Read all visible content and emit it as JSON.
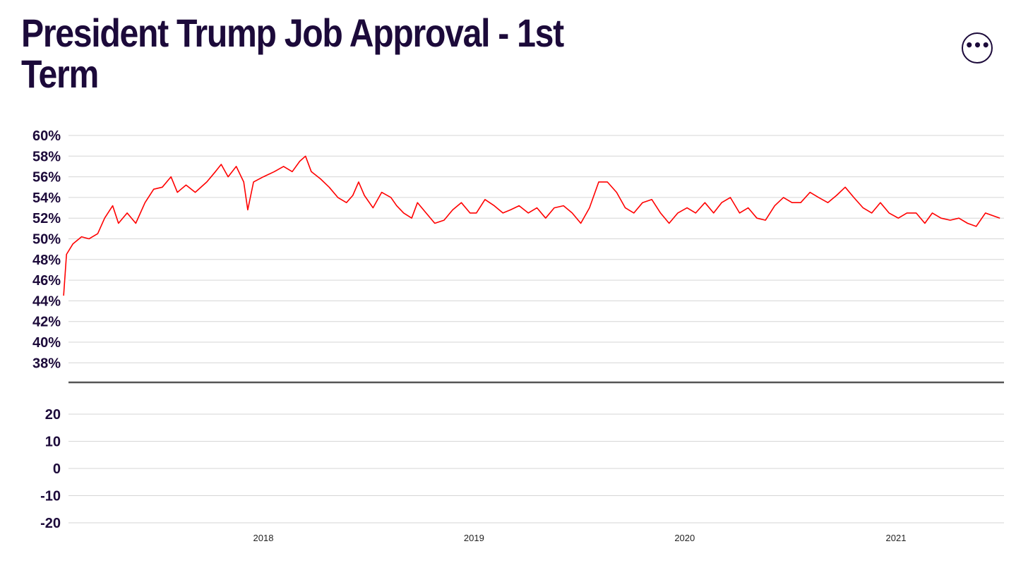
{
  "page": {
    "title": "President Trump Job Approval - 1st Term",
    "more_icon": "ellipsis-icon",
    "more_label": "•••"
  },
  "chart_data": [
    {
      "type": "line",
      "panel": "top",
      "title": "",
      "xlabel": "",
      "ylabel": "",
      "ylim": [
        36,
        60
      ],
      "yticks": [
        "60%",
        "58%",
        "56%",
        "54%",
        "52%",
        "50%",
        "48%",
        "46%",
        "44%",
        "42%",
        "40%",
        "38%"
      ],
      "ytick_values": [
        60,
        58,
        56,
        54,
        52,
        50,
        48,
        46,
        44,
        42,
        40,
        38
      ],
      "xlim": [
        "2017-01-20",
        "2021-06-30"
      ],
      "xticks": [
        "2018",
        "2019",
        "2020",
        "2021"
      ],
      "xtick_dates": [
        "2018-01-01",
        "2019-01-01",
        "2020-01-01",
        "2021-01-01"
      ],
      "grid": true,
      "series": [
        {
          "color": "#ff0000",
          "points": [
            [
              "2017-01-20",
              44.5
            ],
            [
              "2017-01-25",
              48.5
            ],
            [
              "2017-02-05",
              49.5
            ],
            [
              "2017-02-20",
              50.2
            ],
            [
              "2017-03-05",
              50.0
            ],
            [
              "2017-03-20",
              50.5
            ],
            [
              "2017-04-01",
              52.0
            ],
            [
              "2017-04-15",
              53.2
            ],
            [
              "2017-04-25",
              51.5
            ],
            [
              "2017-05-10",
              52.5
            ],
            [
              "2017-05-25",
              51.5
            ],
            [
              "2017-06-10",
              53.5
            ],
            [
              "2017-06-25",
              54.8
            ],
            [
              "2017-07-10",
              55.0
            ],
            [
              "2017-07-25",
              56.0
            ],
            [
              "2017-08-05",
              54.5
            ],
            [
              "2017-08-20",
              55.2
            ],
            [
              "2017-09-05",
              54.5
            ],
            [
              "2017-09-25",
              55.5
            ],
            [
              "2017-10-10",
              56.5
            ],
            [
              "2017-10-20",
              57.2
            ],
            [
              "2017-11-01",
              56.0
            ],
            [
              "2017-11-15",
              57.0
            ],
            [
              "2017-11-28",
              55.5
            ],
            [
              "2017-12-05",
              52.8
            ],
            [
              "2017-12-15",
              55.5
            ],
            [
              "2018-01-01",
              56.0
            ],
            [
              "2018-01-20",
              56.5
            ],
            [
              "2018-02-05",
              57.0
            ],
            [
              "2018-02-20",
              56.5
            ],
            [
              "2018-03-05",
              57.5
            ],
            [
              "2018-03-15",
              58.0
            ],
            [
              "2018-03-25",
              56.5
            ],
            [
              "2018-04-10",
              55.8
            ],
            [
              "2018-04-25",
              55.0
            ],
            [
              "2018-05-10",
              54.0
            ],
            [
              "2018-05-25",
              53.5
            ],
            [
              "2018-06-05",
              54.2
            ],
            [
              "2018-06-15",
              55.5
            ],
            [
              "2018-06-25",
              54.2
            ],
            [
              "2018-07-10",
              53.0
            ],
            [
              "2018-07-25",
              54.5
            ],
            [
              "2018-08-10",
              54.0
            ],
            [
              "2018-08-20",
              53.2
            ],
            [
              "2018-09-01",
              52.5
            ],
            [
              "2018-09-15",
              52.0
            ],
            [
              "2018-09-25",
              53.5
            ],
            [
              "2018-10-10",
              52.5
            ],
            [
              "2018-10-25",
              51.5
            ],
            [
              "2018-11-10",
              51.8
            ],
            [
              "2018-11-25",
              52.8
            ],
            [
              "2018-12-10",
              53.5
            ],
            [
              "2018-12-25",
              52.5
            ],
            [
              "2019-01-05",
              52.5
            ],
            [
              "2019-01-20",
              53.8
            ],
            [
              "2019-02-05",
              53.2
            ],
            [
              "2019-02-20",
              52.5
            ],
            [
              "2019-03-05",
              52.8
            ],
            [
              "2019-03-20",
              53.2
            ],
            [
              "2019-04-05",
              52.5
            ],
            [
              "2019-04-20",
              53.0
            ],
            [
              "2019-05-05",
              52.0
            ],
            [
              "2019-05-20",
              53.0
            ],
            [
              "2019-06-05",
              53.2
            ],
            [
              "2019-06-20",
              52.5
            ],
            [
              "2019-07-05",
              51.5
            ],
            [
              "2019-07-20",
              53.0
            ],
            [
              "2019-08-05",
              55.5
            ],
            [
              "2019-08-20",
              55.5
            ],
            [
              "2019-09-05",
              54.5
            ],
            [
              "2019-09-20",
              53.0
            ],
            [
              "2019-10-05",
              52.5
            ],
            [
              "2019-10-20",
              53.5
            ],
            [
              "2019-11-05",
              53.8
            ],
            [
              "2019-11-20",
              52.5
            ],
            [
              "2019-12-05",
              51.5
            ],
            [
              "2019-12-20",
              52.5
            ],
            [
              "2020-01-05",
              53.0
            ],
            [
              "2020-01-20",
              52.5
            ],
            [
              "2020-02-05",
              53.5
            ],
            [
              "2020-02-20",
              52.5
            ],
            [
              "2020-03-05",
              53.5
            ],
            [
              "2020-03-20",
              54.0
            ],
            [
              "2020-04-05",
              52.5
            ],
            [
              "2020-04-20",
              53.0
            ],
            [
              "2020-05-05",
              52.0
            ],
            [
              "2020-05-20",
              51.8
            ],
            [
              "2020-06-05",
              53.2
            ],
            [
              "2020-06-20",
              54.0
            ],
            [
              "2020-07-05",
              53.5
            ],
            [
              "2020-07-20",
              53.5
            ],
            [
              "2020-08-05",
              54.5
            ],
            [
              "2020-08-20",
              54.0
            ],
            [
              "2020-09-05",
              53.5
            ],
            [
              "2020-09-20",
              54.2
            ],
            [
              "2020-10-05",
              55.0
            ],
            [
              "2020-10-20",
              54.0
            ],
            [
              "2020-11-05",
              53.0
            ],
            [
              "2020-11-20",
              52.5
            ],
            [
              "2020-12-05",
              53.5
            ],
            [
              "2020-12-20",
              52.5
            ],
            [
              "2021-01-05",
              52.0
            ],
            [
              "2021-01-20",
              52.5
            ],
            [
              "2021-02-05",
              52.5
            ],
            [
              "2021-02-20",
              51.5
            ],
            [
              "2021-03-05",
              52.5
            ],
            [
              "2021-03-20",
              52.0
            ],
            [
              "2021-04-05",
              51.8
            ],
            [
              "2021-04-20",
              52.0
            ],
            [
              "2021-05-05",
              51.5
            ],
            [
              "2021-05-20",
              51.2
            ],
            [
              "2021-06-05",
              52.5
            ],
            [
              "2021-06-30",
              52.0
            ]
          ]
        }
      ]
    },
    {
      "type": "area",
      "panel": "bottom",
      "title": "",
      "xlabel": "",
      "ylabel": "",
      "ylim": [
        -20,
        20
      ],
      "yticks": [
        "20",
        "10",
        "0",
        "-10",
        "-20"
      ],
      "ytick_values": [
        20,
        10,
        0,
        -10,
        -20
      ],
      "grid": true,
      "series": [
        {
          "color": "#ff0000",
          "values_note": "",
          "points": []
        }
      ]
    }
  ]
}
